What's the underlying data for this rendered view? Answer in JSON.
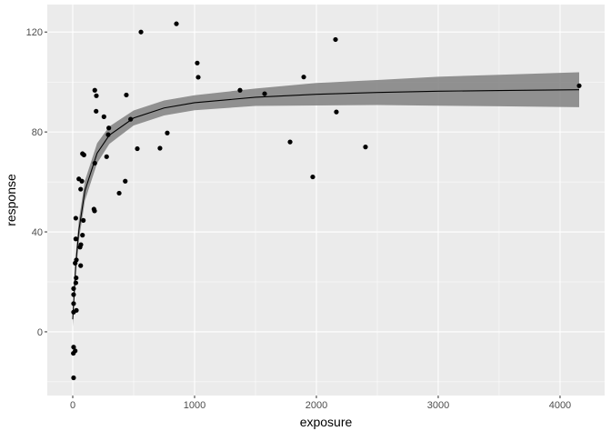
{
  "chart_data": {
    "type": "scatter",
    "title": "",
    "xlabel": "exposure",
    "ylabel": "response",
    "xlim": [
      -209,
      4366
    ],
    "ylim": [
      -25.5,
      131
    ],
    "xticks": [
      0,
      1000,
      2000,
      3000,
      4000
    ],
    "yticks": [
      0,
      40,
      80,
      120
    ],
    "xminor": [
      500,
      1500,
      2500,
      3500
    ],
    "yminor": [
      -20,
      20,
      60,
      100
    ],
    "grid": true,
    "colors": {
      "panel": "#ebebeb",
      "grid": "#ffffff",
      "points": "#000000",
      "ribbon": "#808080",
      "line": "#000000"
    },
    "points": [
      [
        181,
        96.7
      ],
      [
        194,
        94.5
      ],
      [
        440,
        94.8
      ],
      [
        192,
        88.3
      ],
      [
        256,
        86.1
      ],
      [
        296,
        81.6
      ],
      [
        291,
        78.9
      ],
      [
        475,
        85.1
      ],
      [
        530,
        73.3
      ],
      [
        80,
        71.3
      ],
      [
        92,
        70.8
      ],
      [
        278,
        70.1
      ],
      [
        181,
        67.5
      ],
      [
        50,
        61.2
      ],
      [
        75,
        60.3
      ],
      [
        65,
        57.1
      ],
      [
        431,
        60.3
      ],
      [
        381,
        55.5
      ],
      [
        174,
        49.1
      ],
      [
        179,
        48.4
      ],
      [
        25,
        45.5
      ],
      [
        87,
        44.6
      ],
      [
        25,
        37.2
      ],
      [
        80,
        38.7
      ],
      [
        67,
        34.9
      ],
      [
        60,
        33.9
      ],
      [
        30,
        28.8
      ],
      [
        20,
        27.5
      ],
      [
        65,
        26.5
      ],
      [
        28,
        21.6
      ],
      [
        25,
        19.6
      ],
      [
        7,
        17.3
      ],
      [
        7,
        14.9
      ],
      [
        7,
        11.3
      ],
      [
        30,
        8.6
      ],
      [
        7,
        7.9
      ],
      [
        7,
        -6.1
      ],
      [
        20,
        -7.6
      ],
      [
        5,
        -8.6
      ],
      [
        7,
        -18.4
      ],
      [
        1030,
        101.9
      ],
      [
        560,
        120
      ],
      [
        851,
        123.3
      ],
      [
        1022,
        107.6
      ],
      [
        1373,
        96.7
      ],
      [
        1575,
        95.3
      ],
      [
        1896,
        102
      ],
      [
        2157,
        117
      ],
      [
        2164,
        88
      ],
      [
        1784,
        76
      ],
      [
        1970,
        62
      ],
      [
        2403,
        74
      ],
      [
        4157,
        98.5
      ],
      [
        776,
        79.6
      ],
      [
        716,
        73.5
      ]
    ],
    "fit": {
      "x": [
        0,
        25,
        50,
        100,
        200,
        300,
        500,
        750,
        1000,
        1500,
        2000,
        2500,
        3000,
        3500,
        4157
      ],
      "y": [
        5,
        26.9,
        40.5,
        56.5,
        71.5,
        78.7,
        85.6,
        89.6,
        91.7,
        93.9,
        95.1,
        95.8,
        96.3,
        96.6,
        96.9
      ],
      "lower": [
        2,
        22.9,
        36.5,
        52.5,
        67.5,
        75.2,
        82.6,
        86.6,
        88.7,
        90.4,
        90.6,
        90.8,
        90.5,
        90.3,
        89.9
      ],
      "upper": [
        8,
        30.9,
        44.5,
        60.5,
        75.5,
        82.2,
        88.6,
        92.6,
        94.7,
        97.4,
        99.6,
        100.8,
        102.1,
        102.9,
        103.9
      ]
    }
  }
}
